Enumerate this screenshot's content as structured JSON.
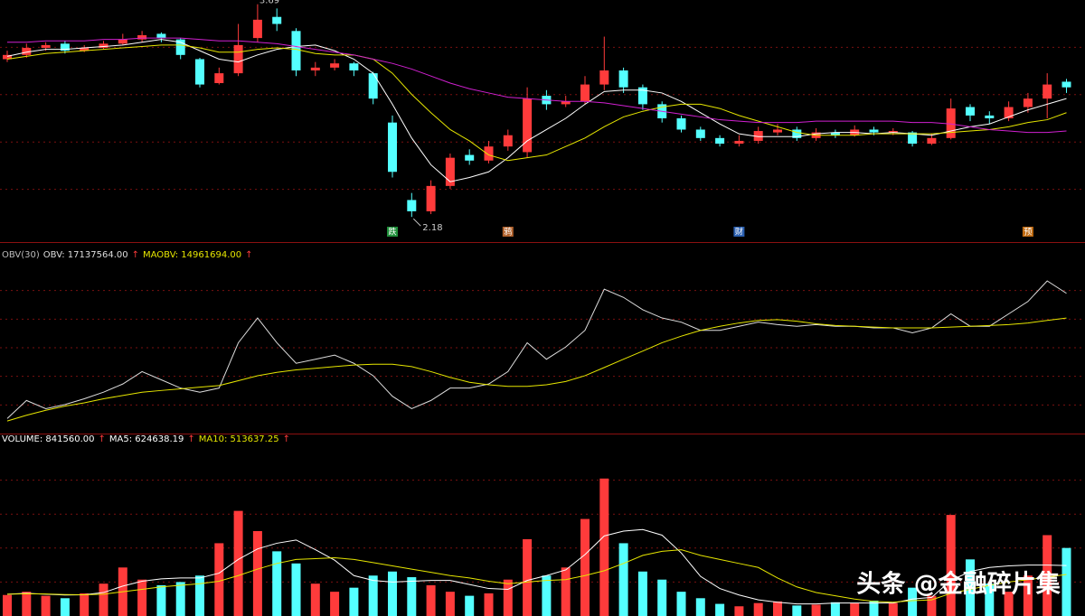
{
  "chart_data": [
    {
      "type": "candlestick",
      "open": [
        3.3,
        3.33,
        3.38,
        3.41,
        3.36,
        3.38,
        3.41,
        3.44,
        3.48,
        3.44,
        3.3,
        3.13,
        3.2,
        3.45,
        3.6,
        3.5,
        3.22,
        3.24,
        3.27,
        3.2,
        2.85,
        2.3,
        2.22,
        2.4,
        2.62,
        2.58,
        2.68,
        2.64,
        3.04,
        2.98,
        3.0,
        3.12,
        3.22,
        3.1,
        2.98,
        2.88,
        2.8,
        2.74,
        2.7,
        2.72,
        2.78,
        2.8,
        2.74,
        2.78,
        2.76,
        2.8,
        2.78,
        2.78,
        2.7,
        2.74,
        2.96,
        2.9,
        2.88,
        2.96,
        3.02,
        3.14
      ],
      "high": [
        3.36,
        3.41,
        3.42,
        3.43,
        3.4,
        3.43,
        3.48,
        3.5,
        3.49,
        3.45,
        3.31,
        3.24,
        3.55,
        3.69,
        3.66,
        3.52,
        3.28,
        3.3,
        3.28,
        3.21,
        2.9,
        2.35,
        2.44,
        2.63,
        2.66,
        2.72,
        2.8,
        3.1,
        3.08,
        3.04,
        3.18,
        3.46,
        3.24,
        3.12,
        3.0,
        2.9,
        2.82,
        2.76,
        2.76,
        2.82,
        2.84,
        2.82,
        2.81,
        2.8,
        2.83,
        2.82,
        2.81,
        2.79,
        2.77,
        3.02,
        2.98,
        2.93,
        3.0,
        3.06,
        3.2,
        3.16
      ],
      "low": [
        3.28,
        3.31,
        3.36,
        3.34,
        3.35,
        3.37,
        3.4,
        3.42,
        3.42,
        3.3,
        3.1,
        3.12,
        3.18,
        3.42,
        3.5,
        3.18,
        3.18,
        3.22,
        3.18,
        2.98,
        2.46,
        2.18,
        2.2,
        2.38,
        2.55,
        2.56,
        2.65,
        2.6,
        2.94,
        2.96,
        2.98,
        3.08,
        3.06,
        2.94,
        2.85,
        2.78,
        2.72,
        2.68,
        2.68,
        2.7,
        2.76,
        2.72,
        2.72,
        2.74,
        2.75,
        2.76,
        2.76,
        2.68,
        2.69,
        2.73,
        2.86,
        2.84,
        2.86,
        2.92,
        2.88,
        3.06
      ],
      "close": [
        3.33,
        3.38,
        3.4,
        3.36,
        3.38,
        3.41,
        3.44,
        3.47,
        3.45,
        3.33,
        3.12,
        3.2,
        3.4,
        3.58,
        3.55,
        3.22,
        3.24,
        3.27,
        3.22,
        3.02,
        2.5,
        2.22,
        2.4,
        2.6,
        2.58,
        2.68,
        2.76,
        3.02,
        2.98,
        3.0,
        3.12,
        3.22,
        3.1,
        2.98,
        2.88,
        2.8,
        2.74,
        2.7,
        2.72,
        2.79,
        2.8,
        2.74,
        2.78,
        2.76,
        2.8,
        2.78,
        2.79,
        2.7,
        2.74,
        2.95,
        2.9,
        2.88,
        2.96,
        3.02,
        3.12,
        3.1
      ],
      "up_color": "#ff3b3b",
      "down_color": "#54ffff",
      "series": [
        {
          "color": "#ffffff",
          "values": [
            3.32,
            3.35,
            3.37,
            3.37,
            3.38,
            3.39,
            3.4,
            3.42,
            3.44,
            3.42,
            3.36,
            3.3,
            3.28,
            3.33,
            3.37,
            3.39,
            3.4,
            3.36,
            3.3,
            3.2,
            2.98,
            2.74,
            2.55,
            2.43,
            2.46,
            2.5,
            2.6,
            2.72,
            2.8,
            2.88,
            2.98,
            3.07,
            3.08,
            3.08,
            3.06,
            3.0,
            2.92,
            2.84,
            2.77,
            2.75,
            2.75,
            2.75,
            2.77,
            2.78,
            2.78,
            2.77,
            2.78,
            2.77,
            2.76,
            2.79,
            2.82,
            2.84,
            2.89,
            2.94,
            2.98,
            3.02
          ]
        },
        {
          "color": "#e6e600",
          "values": [
            3.3,
            3.32,
            3.34,
            3.35,
            3.36,
            3.37,
            3.38,
            3.39,
            3.4,
            3.4,
            3.38,
            3.35,
            3.35,
            3.37,
            3.38,
            3.37,
            3.34,
            3.33,
            3.33,
            3.3,
            3.2,
            3.05,
            2.92,
            2.8,
            2.72,
            2.62,
            2.58,
            2.6,
            2.62,
            2.68,
            2.74,
            2.82,
            2.89,
            2.93,
            2.96,
            2.98,
            2.98,
            2.95,
            2.9,
            2.86,
            2.82,
            2.78,
            2.76,
            2.76,
            2.76,
            2.77,
            2.77,
            2.77,
            2.77,
            2.78,
            2.79,
            2.8,
            2.82,
            2.85,
            2.87,
            2.92
          ]
        },
        {
          "color": "#d020d0",
          "values": [
            3.42,
            3.42,
            3.43,
            3.43,
            3.43,
            3.44,
            3.44,
            3.45,
            3.45,
            3.45,
            3.44,
            3.43,
            3.43,
            3.42,
            3.41,
            3.39,
            3.37,
            3.35,
            3.33,
            3.3,
            3.27,
            3.23,
            3.18,
            3.13,
            3.09,
            3.06,
            3.03,
            3.02,
            3.01,
            3.0,
            3.0,
            2.99,
            2.97,
            2.95,
            2.93,
            2.91,
            2.89,
            2.87,
            2.86,
            2.85,
            2.85,
            2.85,
            2.86,
            2.86,
            2.86,
            2.86,
            2.86,
            2.85,
            2.85,
            2.84,
            2.82,
            2.8,
            2.79,
            2.78,
            2.78,
            2.79
          ]
        }
      ],
      "ylim": [
        2.04,
        3.72
      ],
      "markers": [
        {
          "at": 20,
          "label": "跌",
          "color": "#1f8f3a"
        },
        {
          "at": 26,
          "label": "鸦",
          "color": "#b0602a"
        },
        {
          "at": 38,
          "label": "财",
          "color": "#2a5fb0"
        },
        {
          "at": 53,
          "label": "预",
          "color": "#c06a10"
        }
      ]
    },
    {
      "type": "line",
      "title": "OBV(30)",
      "series": [
        {
          "name": "OBV: 17137564.00",
          "arrow": "↑",
          "color": "#dddddd",
          "values": [
            6120000,
            7710000,
            6990000,
            7350000,
            7860000,
            8440000,
            9160000,
            10250000,
            9530000,
            8800000,
            8440000,
            8800000,
            12790000,
            14970000,
            12790000,
            10980000,
            11340000,
            11700000,
            10980000,
            9890000,
            8080000,
            6990000,
            7710000,
            8800000,
            8800000,
            9160000,
            10250000,
            12790000,
            11340000,
            12420000,
            13880000,
            17500000,
            16780000,
            15690000,
            14970000,
            14600000,
            13880000,
            13880000,
            14240000,
            14600000,
            14390000,
            14240000,
            14390000,
            14240000,
            14240000,
            14100000,
            14100000,
            13660000,
            14100000,
            15330000,
            14240000,
            14240000,
            15330000,
            16420000,
            18230000,
            17137564
          ]
        },
        {
          "name": "MAOBV: 14961694.00",
          "arrow": "↑",
          "color": "#e6e600",
          "values": [
            5900000,
            6410000,
            6850000,
            7210000,
            7500000,
            7860000,
            8150000,
            8440000,
            8590000,
            8730000,
            8880000,
            9020000,
            9450000,
            9890000,
            10180000,
            10400000,
            10540000,
            10690000,
            10830000,
            10900000,
            10900000,
            10690000,
            10250000,
            9740000,
            9310000,
            9090000,
            8950000,
            8950000,
            9090000,
            9380000,
            9890000,
            10610000,
            11340000,
            12060000,
            12790000,
            13370000,
            13880000,
            14240000,
            14530000,
            14750000,
            14820000,
            14680000,
            14460000,
            14310000,
            14240000,
            14170000,
            14100000,
            14100000,
            14100000,
            14170000,
            14240000,
            14310000,
            14390000,
            14530000,
            14750000,
            14961694
          ]
        }
      ],
      "ylim": [
        4800000,
        19900000
      ]
    },
    {
      "type": "bar",
      "legend": [
        {
          "name": "VOLUME: 841560.00",
          "arrow": "↑"
        },
        {
          "name": "MA5: 624638.19",
          "arrow": "↑"
        },
        {
          "name": "MA10: 513637.25",
          "arrow": "↑"
        }
      ],
      "values": [
        260000,
        300000,
        250000,
        220000,
        280000,
        400000,
        600000,
        450000,
        380000,
        420000,
        500000,
        900000,
        1300000,
        1050000,
        800000,
        650000,
        400000,
        300000,
        350000,
        500000,
        550000,
        480000,
        380000,
        300000,
        250000,
        280000,
        450000,
        950000,
        500000,
        600000,
        1200000,
        1700000,
        900000,
        550000,
        450000,
        300000,
        220000,
        150000,
        120000,
        160000,
        180000,
        130000,
        140000,
        170000,
        160000,
        190000,
        160000,
        350000,
        250000,
        1250000,
        700000,
        400000,
        300000,
        500000,
        1000000,
        841560
      ],
      "series": [
        {
          "color": "#ffffff",
          "values": [
            270000,
            280000,
            270000,
            260000,
            262000,
            290000,
            370000,
            430000,
            460000,
            470000,
            470000,
            530000,
            700000,
            830000,
            900000,
            940000,
            820000,
            690000,
            500000,
            440000,
            420000,
            430000,
            440000,
            440000,
            390000,
            340000,
            330000,
            440000,
            500000,
            570000,
            760000,
            990000,
            1050000,
            1070000,
            1000000,
            780000,
            490000,
            340000,
            260000,
            200000,
            170000,
            150000,
            150000,
            160000,
            160000,
            160000,
            160000,
            210000,
            230000,
            440000,
            550000,
            600000,
            620000,
            630000,
            630000,
            624638.19
          ]
        },
        {
          "color": "#e6e600",
          "values": [
            270000,
            275000,
            272000,
            265000,
            262000,
            270000,
            300000,
            330000,
            360000,
            380000,
            400000,
            430000,
            500000,
            580000,
            650000,
            700000,
            710000,
            720000,
            700000,
            660000,
            620000,
            580000,
            540000,
            500000,
            470000,
            430000,
            400000,
            420000,
            440000,
            450000,
            500000,
            560000,
            650000,
            750000,
            800000,
            820000,
            750000,
            700000,
            650000,
            600000,
            470000,
            360000,
            290000,
            250000,
            210000,
            180000,
            170000,
            190000,
            200000,
            280000,
            330000,
            380000,
            420000,
            450000,
            480000,
            513637.25
          ]
        }
      ],
      "ylim": [
        0,
        2100000
      ]
    }
  ],
  "watermark": "头条 @金融碎片集"
}
